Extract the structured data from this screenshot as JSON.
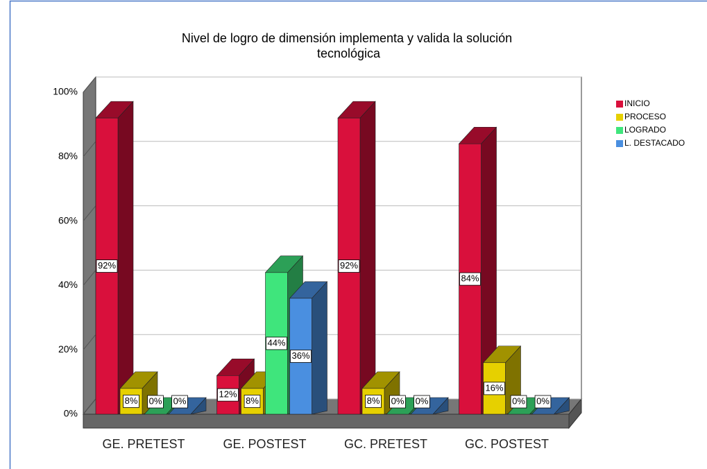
{
  "chart_data": {
    "type": "bar3d",
    "title": "Nivel de logro de dimensión implementa y valida la solución tecnológica",
    "categories": [
      "GE. PRETEST",
      "GE. POSTEST",
      "GC. PRETEST",
      "GC. POSTEST"
    ],
    "series": [
      {
        "name": "INICIO",
        "color": "#d9103c",
        "values": [
          92,
          12,
          92,
          84
        ],
        "value_labels": [
          "92%",
          "12%",
          "92%",
          "84%"
        ]
      },
      {
        "name": "PROCESO",
        "color": "#e6d000",
        "values": [
          8,
          8,
          8,
          16
        ],
        "value_labels": [
          "8%",
          "8%",
          "8%",
          "16%"
        ]
      },
      {
        "name": "LOGRADO",
        "color": "#3fe57c",
        "values": [
          0,
          44,
          0,
          0
        ],
        "value_labels": [
          "0%",
          "44%",
          "0%",
          "0%"
        ]
      },
      {
        "name": "L. DESTACADO",
        "color": "#4a8fe0",
        "values": [
          0,
          36,
          0,
          0
        ],
        "value_labels": [
          "0%",
          "36%",
          "0%",
          "0%"
        ]
      }
    ],
    "ylim": [
      0,
      100
    ],
    "yticks": [
      {
        "value": 0,
        "label": "0%"
      },
      {
        "value": 20,
        "label": "20%"
      },
      {
        "value": 40,
        "label": "40%"
      },
      {
        "value": 60,
        "label": "60%"
      },
      {
        "value": 80,
        "label": "80%"
      },
      {
        "value": 100,
        "label": "100%"
      }
    ],
    "grid": true,
    "legend": "right"
  }
}
